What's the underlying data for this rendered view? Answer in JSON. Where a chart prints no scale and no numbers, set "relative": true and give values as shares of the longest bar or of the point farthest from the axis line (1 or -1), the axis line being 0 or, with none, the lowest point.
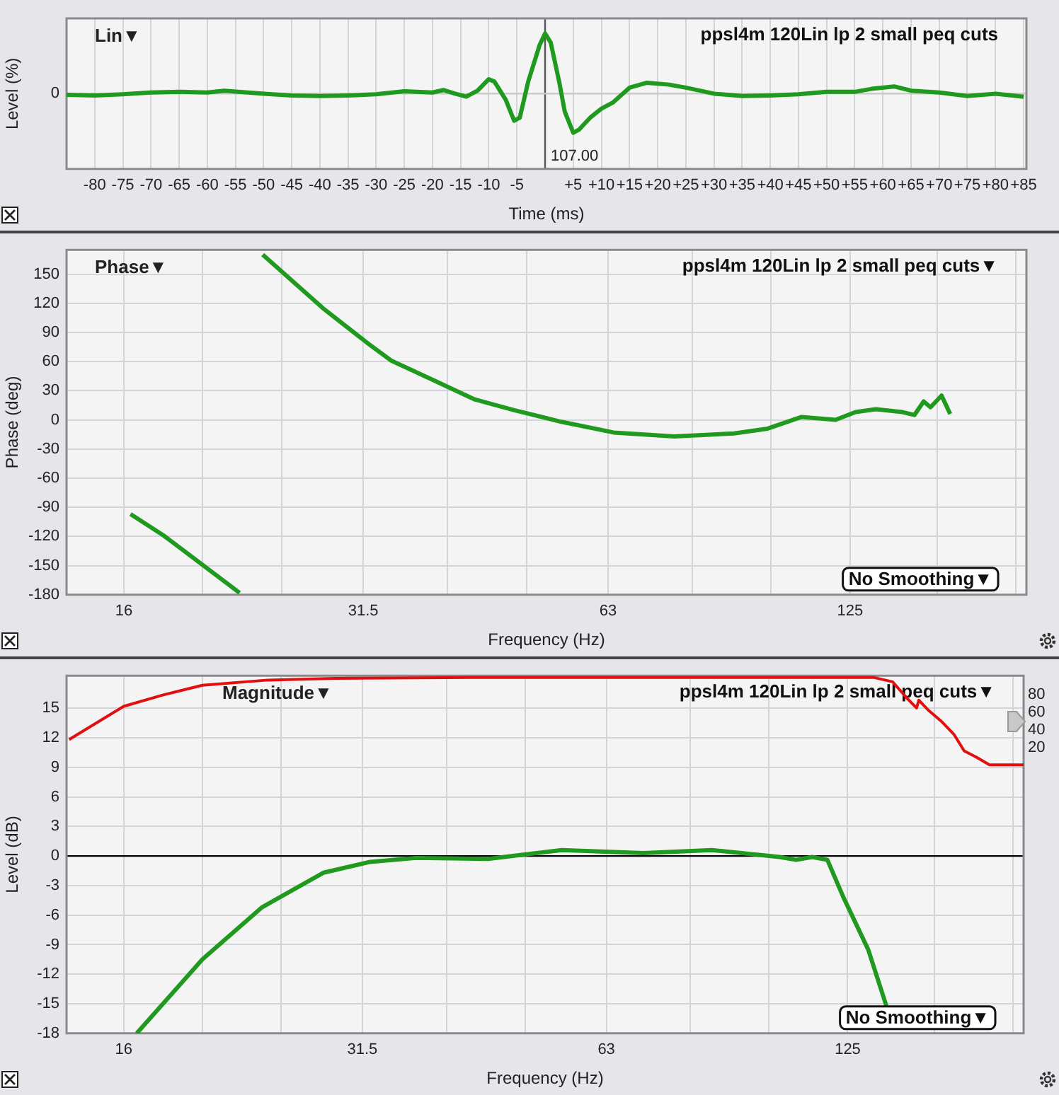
{
  "chart_data": [
    {
      "type": "line",
      "title": "Lin▼",
      "xlabel": "Time (ms)",
      "ylabel": "Level (%)",
      "annotations": [
        "ppsl4m 120Lin lp 2 small peq cuts",
        "107.00"
      ],
      "relative": true,
      "marker": "none",
      "grid": "x",
      "x": [
        -85,
        -80,
        -75,
        -70,
        -65,
        -60,
        -57,
        -50,
        -45,
        -40,
        -35,
        -30,
        -25,
        -20,
        -18,
        -16,
        -14,
        -12,
        -10,
        -9,
        -7,
        -5.5,
        -4.5,
        -3,
        -1,
        0,
        1,
        2.5,
        3.5,
        5,
        6,
        8,
        10,
        12,
        15,
        18,
        22,
        25,
        30,
        35,
        40,
        45,
        50,
        55,
        58,
        62,
        65,
        70,
        75,
        80,
        85
      ],
      "series": [
        {
          "color": "#1f9a1f",
          "values": [
            -0.02,
            -0.03,
            -0.01,
            0.02,
            0.03,
            0.02,
            0.05,
            0,
            -0.03,
            -0.04,
            -0.03,
            -0.01,
            0.04,
            0.02,
            0.06,
            0,
            -0.05,
            0.05,
            0.24,
            0.2,
            -0.1,
            -0.45,
            -0.4,
            0.2,
            0.8,
            1,
            0.85,
            0.2,
            -0.3,
            -0.65,
            -0.6,
            -0.4,
            -0.25,
            -0.15,
            0.1,
            0.18,
            0.15,
            0.1,
            0,
            -0.04,
            -0.03,
            -0.01,
            0.03,
            0.03,
            0.08,
            0.12,
            0.05,
            0.02,
            -0.04,
            0,
            -0.05
          ]
        }
      ],
      "xlim": [
        -85,
        85.5
      ],
      "xticks": [
        -80,
        -75,
        -70,
        -65,
        -60,
        -55,
        -50,
        -45,
        -40,
        -35,
        -30,
        -25,
        -20,
        -15,
        -10,
        -5,
        {
          "value": 0,
          "label": null
        },
        {
          "value": 5,
          "label": "+5"
        },
        {
          "value": 10,
          "label": "+10"
        },
        {
          "value": 15,
          "label": "+15"
        },
        {
          "value": 20,
          "label": "+20"
        },
        {
          "value": 25,
          "label": "+25"
        },
        {
          "value": 30,
          "label": "+30"
        },
        {
          "value": 35,
          "label": "+35"
        },
        {
          "value": 40,
          "label": "+40"
        },
        {
          "value": 45,
          "label": "+45"
        },
        {
          "value": 50,
          "label": "+50"
        },
        {
          "value": 55,
          "label": "+55"
        },
        {
          "value": 60,
          "label": "+60"
        },
        {
          "value": 65,
          "label": "+65"
        },
        {
          "value": 70,
          "label": "+70"
        },
        {
          "value": 75,
          "label": "+75"
        },
        {
          "value": 80,
          "label": "+80"
        },
        {
          "value": 85,
          "label": "+85"
        }
      ],
      "ref_lines": [
        {
          "axis": "x",
          "value": 0,
          "color": "#555555"
        },
        {
          "axis": "y",
          "value": 0,
          "label": "0",
          "color": "#c8c8c8"
        }
      ]
    },
    {
      "type": "line",
      "title": "Phase▼",
      "xlabel": "Frequency (Hz)",
      "ylabel": "Phase (deg)",
      "annotations": [
        "ppsl4m 120Lin lp 2 small peq cuts▼",
        "No Smoothing▼"
      ],
      "log": "x",
      "marker": "none",
      "grid": true,
      "x": [
        16.3,
        17.9,
        22.2,
        22.9,
        23.7,
        28.1,
        32,
        34.1,
        38.4,
        43.2,
        48.3,
        55.2,
        64,
        76,
        90,
        99,
        109,
        120,
        127,
        134.5,
        145,
        150,
        154,
        157,
        162,
        166
      ],
      "series": [
        {
          "color": "#1f9a1f",
          "values": [
            -97,
            -119,
            -178,
            null,
            170,
            115,
            78,
            61,
            41,
            21,
            10,
            -2,
            -13,
            -17,
            -14,
            -9,
            3,
            0,
            8,
            11,
            8,
            5,
            19,
            13,
            25,
            6
          ]
        }
      ],
      "xlim": [
        13.6,
        206
      ],
      "xticks": [
        16,
        {
          "value": 20,
          "label": null
        },
        {
          "value": 25,
          "label": null
        },
        31.5,
        {
          "value": 40,
          "label": null
        },
        {
          "value": 50,
          "label": null
        },
        63,
        {
          "value": 80,
          "label": null
        },
        {
          "value": 100,
          "label": null
        },
        125,
        {
          "value": 160,
          "label": null
        },
        {
          "value": 200,
          "label": null
        }
      ],
      "ylim": [
        -180,
        175
      ],
      "yticks": [
        -180,
        -150,
        -120,
        -90,
        -60,
        -30,
        0,
        30,
        60,
        90,
        120,
        150
      ]
    },
    {
      "type": "line",
      "title": "Magnitude▼",
      "xlabel": "Frequency (Hz)",
      "ylabel": "Level (dB)",
      "annotations": [
        "ppsl4m 120Lin lp 2 small peq cuts▼",
        "No Smoothing▼"
      ],
      "log": "x",
      "marker": "none",
      "grid": true,
      "series": [
        {
          "color": "#1f9a1f",
          "x": [
            16.6,
            20,
            23.7,
            28.2,
            32.2,
            36.7,
            45,
            55.5,
            70,
            85,
            103,
            108,
            113,
            118,
            123.5,
            132.5,
            139.5
          ],
          "values": [
            -18,
            -10.5,
            -5.2,
            -1.7,
            -0.6,
            -0.2,
            -0.3,
            0.6,
            0.3,
            0.6,
            -0.1,
            -0.4,
            -0.1,
            -0.4,
            -4.2,
            -9.5,
            -15.2
          ]
        },
        {
          "color": "#e01010",
          "axis": "y2",
          "x": [
            13.7,
            16,
            17.9,
            20,
            24.1,
            29.1,
            43,
            134.5,
            142,
            148,
            152,
            153,
            157,
            163,
            169,
            174,
            180,
            187,
            206
          ],
          "values": [
            29,
            67,
            80,
            91,
            97,
            99,
            100,
            100,
            95,
            76,
            65,
            74,
            63,
            50,
            35,
            16,
            9,
            0,
            0
          ]
        }
      ],
      "xlim": [
        13.6,
        206
      ],
      "xticks": [
        16,
        {
          "value": 20,
          "label": null
        },
        {
          "value": 25,
          "label": null
        },
        31.5,
        {
          "value": 40,
          "label": null
        },
        {
          "value": 50,
          "label": null
        },
        63,
        {
          "value": 80,
          "label": null
        },
        {
          "value": 100,
          "label": null
        },
        125,
        {
          "value": 160,
          "label": null
        },
        {
          "value": 200,
          "label": null
        }
      ],
      "ylim": [
        -18,
        18.3
      ],
      "yticks": [
        -18,
        -15,
        -12,
        -9,
        -6,
        -3,
        0,
        3,
        6,
        9,
        12,
        15
      ],
      "y2lim": [
        -307,
        102
      ],
      "y2ticks": [
        20,
        40,
        60,
        80
      ],
      "ref_lines": [
        {
          "axis": "y",
          "value": 0,
          "color": "#000000"
        }
      ]
    }
  ]
}
